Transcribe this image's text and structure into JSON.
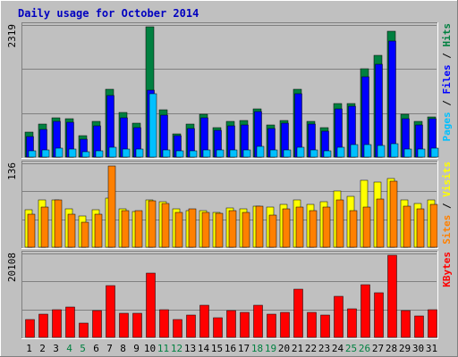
{
  "title": "Daily usage for October 2014",
  "colors": {
    "background": "#C0C0C0",
    "title": "#0000C0",
    "hits": "#008040",
    "files": "#0000FF",
    "pages": "#00C0FF",
    "visits": "#FFFF00",
    "sites": "#FF8000",
    "kbytes": "#FF0000",
    "weekend_label": "#008040"
  },
  "chart_data": [
    {
      "type": "bar",
      "name": "hits-files-pages",
      "categories": [
        "1",
        "2",
        "3",
        "4",
        "5",
        "6",
        "7",
        "8",
        "9",
        "10",
        "11",
        "12",
        "13",
        "14",
        "15",
        "16",
        "17",
        "18",
        "19",
        "20",
        "21",
        "22",
        "23",
        "24",
        "25",
        "26",
        "27",
        "28",
        "29",
        "30",
        "31"
      ],
      "ymax_label": "2319",
      "ylim": [
        0,
        2319
      ],
      "legend": [
        {
          "text": "Hits",
          "color": "#008040"
        },
        {
          "text": " / ",
          "color": "#000000"
        },
        {
          "text": "Files",
          "color": "#0000FF"
        },
        {
          "text": " / ",
          "color": "#000000"
        },
        {
          "text": "Pages",
          "color": "#00C0FF"
        }
      ],
      "series": [
        {
          "name": "Hits",
          "color": "#008040",
          "values": [
            440,
            590,
            700,
            680,
            375,
            640,
            1210,
            790,
            605,
            2319,
            840,
            415,
            590,
            765,
            525,
            640,
            650,
            865,
            570,
            650,
            1210,
            640,
            525,
            950,
            960,
            1570,
            1815,
            2240,
            765,
            640,
            720
          ]
        },
        {
          "name": "Files",
          "color": "#0000FF",
          "values": [
            370,
            500,
            630,
            620,
            320,
            560,
            1090,
            700,
            520,
            1190,
            750,
            380,
            510,
            700,
            480,
            560,
            570,
            810,
            510,
            600,
            1120,
            580,
            465,
            860,
            900,
            1430,
            1650,
            2060,
            680,
            570,
            690
          ]
        },
        {
          "name": "Pages",
          "color": "#00C0FF",
          "values": [
            110,
            125,
            155,
            140,
            95,
            115,
            175,
            145,
            140,
            1120,
            130,
            105,
            115,
            135,
            120,
            130,
            130,
            185,
            125,
            135,
            170,
            130,
            110,
            175,
            230,
            215,
            205,
            235,
            150,
            150,
            165
          ]
        }
      ]
    },
    {
      "type": "bar",
      "name": "visits-sites",
      "categories": [
        "1",
        "2",
        "3",
        "4",
        "5",
        "6",
        "7",
        "8",
        "9",
        "10",
        "11",
        "12",
        "13",
        "14",
        "15",
        "16",
        "17",
        "18",
        "19",
        "20",
        "21",
        "22",
        "23",
        "24",
        "25",
        "26",
        "27",
        "28",
        "29",
        "30",
        "31"
      ],
      "ymax_label": "136",
      "ylim": [
        0,
        136
      ],
      "legend": [
        {
          "text": "Visits",
          "color": "#FFFF00"
        },
        {
          "text": " / ",
          "color": "#000000"
        },
        {
          "text": "Sites",
          "color": "#FF8000"
        }
      ],
      "series": [
        {
          "name": "Visits",
          "color": "#FFFF00",
          "values": [
            62,
            78,
            78,
            64,
            51,
            62,
            82,
            63,
            59,
            79,
            75,
            63,
            60,
            60,
            58,
            65,
            63,
            68,
            66,
            71,
            78,
            71,
            76,
            93,
            84,
            111,
            108,
            114,
            79,
            72,
            79
          ]
        },
        {
          "name": "Sites",
          "color": "#FF8000",
          "values": [
            54,
            66,
            78,
            54,
            41,
            55,
            134,
            61,
            61,
            77,
            72,
            58,
            63,
            58,
            56,
            61,
            58,
            68,
            53,
            64,
            67,
            61,
            66,
            78,
            60,
            67,
            80,
            110,
            68,
            63,
            71
          ]
        }
      ]
    },
    {
      "type": "bar",
      "name": "kbytes",
      "categories": [
        "1",
        "2",
        "3",
        "4",
        "5",
        "6",
        "7",
        "8",
        "9",
        "10",
        "11",
        "12",
        "13",
        "14",
        "15",
        "16",
        "17",
        "18",
        "19",
        "20",
        "21",
        "22",
        "23",
        "24",
        "25",
        "26",
        "27",
        "28",
        "29",
        "30",
        "31"
      ],
      "ymax_label": "20108",
      "ylim": [
        0,
        20108
      ],
      "legend": [
        {
          "text": "KBytes",
          "color": "#FF0000"
        }
      ],
      "series": [
        {
          "name": "KBytes",
          "color": "#FF0000",
          "values": [
            4300,
            5700,
            6700,
            7500,
            3500,
            6600,
            12700,
            5900,
            5800,
            15700,
            6800,
            4400,
            5500,
            7800,
            4900,
            6600,
            6100,
            7800,
            5600,
            6100,
            11900,
            6100,
            5500,
            10000,
            7000,
            12800,
            10900,
            20108,
            6500,
            5200,
            6800
          ]
        }
      ]
    }
  ],
  "weekend_days": [
    "4",
    "5",
    "11",
    "12",
    "18",
    "19",
    "25",
    "26"
  ]
}
